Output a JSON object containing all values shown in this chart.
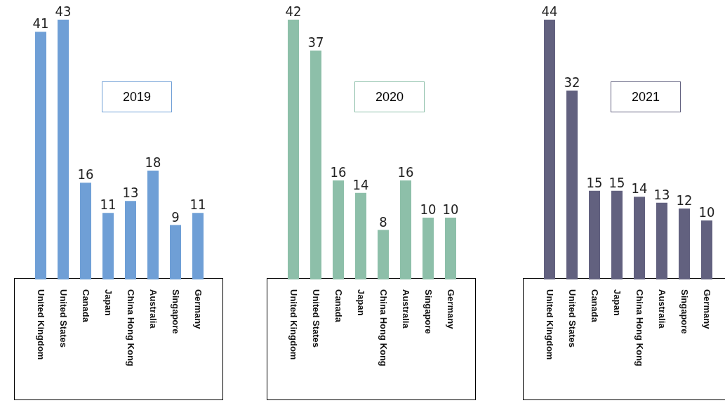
{
  "chart_data": [
    {
      "type": "bar",
      "title": "2019",
      "categories": [
        "United Kingdom",
        "United States",
        "Canada",
        "Japan",
        "China Hong Kong",
        "Australia",
        "Singapore",
        "Germany"
      ],
      "values": [
        41,
        43,
        16,
        11,
        13,
        18,
        9,
        11
      ],
      "color": "#6f9fd6",
      "data_labels": true
    },
    {
      "type": "bar",
      "title": "2020",
      "categories": [
        "United Kingdom",
        "United States",
        "Canada",
        "Japan",
        "China Hong Kong",
        "Australia",
        "Singapore",
        "Germany"
      ],
      "values": [
        42,
        37,
        16,
        14,
        8,
        16,
        10,
        10
      ],
      "color": "#8dbfa9",
      "data_labels": true
    },
    {
      "type": "bar",
      "title": "2021",
      "categories": [
        "United Kingdom",
        "United States",
        "Canada",
        "Japan",
        "China Hong Kong",
        "Australia",
        "Singapore",
        "Germany"
      ],
      "values": [
        44,
        32,
        15,
        15,
        14,
        13,
        12,
        10
      ],
      "color": "#62617f",
      "data_labels": true
    }
  ]
}
